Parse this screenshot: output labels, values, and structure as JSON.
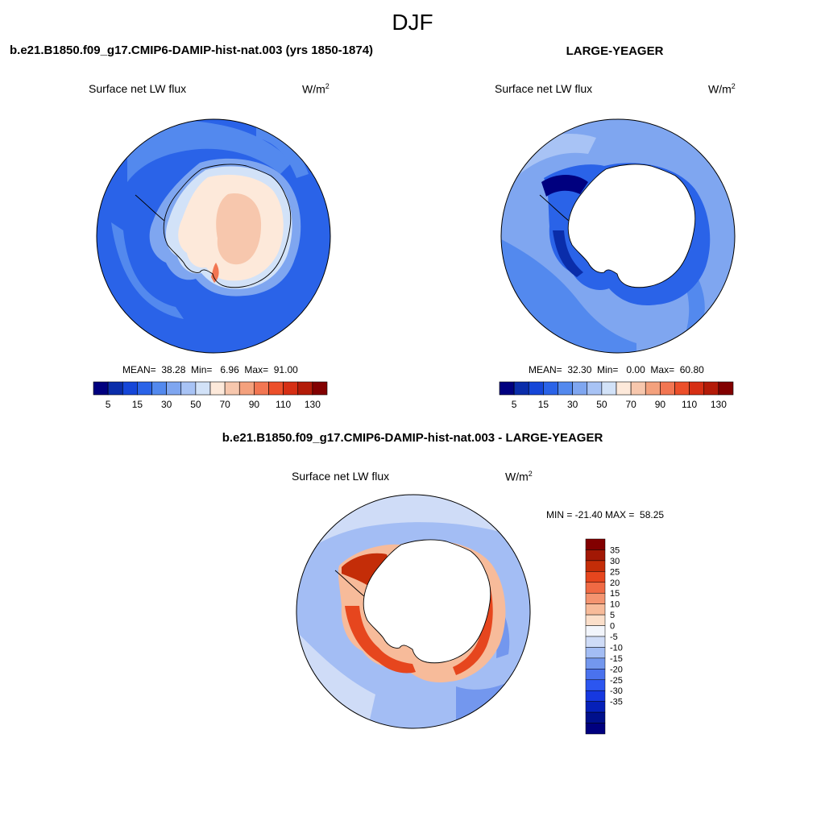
{
  "figure": {
    "season": "DJF",
    "panel1_title": "b.e21.B1850.f09_g17.CMIP6-DAMIP-hist-nat.003 (yrs 1850-1874)",
    "panel2_title": "LARGE-YEAGER",
    "diff_title": "b.e21.B1850.f09_g17.CMIP6-DAMIP-hist-nat.003 - LARGE-YEAGER"
  },
  "panels": [
    {
      "variable": "Surface net LW flux",
      "units_base": "W/m",
      "units_exp": "2",
      "stats": "MEAN=  38.28  Min=   6.96  Max=  91.00"
    },
    {
      "variable": "Surface net LW flux",
      "units_base": "W/m",
      "units_exp": "2",
      "stats": "MEAN=  32.30  Min=   0.00  Max=  60.80"
    },
    {
      "variable": "Surface net LW flux",
      "units_base": "W/m",
      "units_exp": "2",
      "stats": "MIN = -21.40 MAX =  58.25"
    }
  ],
  "colors": {
    "absolute_palette": [
      "#00007f",
      "#0a2daa",
      "#1546d8",
      "#2a63e8",
      "#5389ee",
      "#7fa6f0",
      "#a8c3f5",
      "#d2e2f8",
      "#fde9da",
      "#f7c7ad",
      "#f4a17d",
      "#f27652",
      "#ec4f2a",
      "#d62f14",
      "#b31b08",
      "#820000"
    ],
    "diff_palette": [
      "#00007f",
      "#00108c",
      "#0520b8",
      "#1638e0",
      "#2c56f0",
      "#4a72ee",
      "#7397ee",
      "#a3bdf4",
      "#cfdcf7",
      "#f2f5fb",
      "#fbdfca",
      "#f7bb9a",
      "#f49470",
      "#f06a44",
      "#e6461e",
      "#c42d08",
      "#a21805",
      "#820000"
    ],
    "land": "#ffffff",
    "coast": "#000000"
  },
  "chart_data": [
    {
      "type": "heatmap",
      "projection": "south-polar-stereographic",
      "title": "b.e21.B1850.f09_g17.CMIP6-DAMIP-hist-nat.003 (yrs 1850-1874)",
      "variable": "Surface net LW flux",
      "units": "W/m2",
      "mean": 38.28,
      "min": 6.96,
      "max": 91.0,
      "colorbar_levels": [
        5,
        10,
        15,
        20,
        30,
        40,
        50,
        60,
        70,
        80,
        90,
        100,
        110,
        120,
        130
      ],
      "colorbar_tick_labels": [
        "5",
        "15",
        "30",
        "50",
        "70",
        "90",
        "110",
        "130"
      ],
      "ocean_typical": 20,
      "antarctic_interior_typical": 70
    },
    {
      "type": "heatmap",
      "projection": "south-polar-stereographic",
      "title": "LARGE-YEAGER",
      "variable": "Surface net LW flux",
      "units": "W/m2",
      "mean": 32.3,
      "min": 0.0,
      "max": 60.8,
      "colorbar_levels": [
        5,
        10,
        15,
        20,
        30,
        40,
        50,
        60,
        70,
        80,
        90,
        100,
        110,
        120,
        130
      ],
      "colorbar_tick_labels": [
        "5",
        "15",
        "30",
        "50",
        "70",
        "90",
        "110",
        "130"
      ],
      "ocean_typical": 30,
      "land_masked": true
    },
    {
      "type": "heatmap",
      "projection": "south-polar-stereographic",
      "title": "b.e21.B1850.f09_g17.CMIP6-DAMIP-hist-nat.003 - LARGE-YEAGER",
      "variable": "Surface net LW flux",
      "units": "W/m2",
      "min": -21.4,
      "max": 58.25,
      "colorbar_levels": [
        -35,
        -30,
        -25,
        -20,
        -15,
        -10,
        -5,
        0,
        5,
        10,
        15,
        20,
        25,
        30,
        35
      ],
      "colorbar_tick_labels": [
        "35",
        "30",
        "25",
        "20",
        "15",
        "10",
        "5",
        "0",
        "-5",
        "-10",
        "-15",
        "-20",
        "-25",
        "-30",
        "-35"
      ],
      "ocean_typical": -8,
      "coastal_ring_typical": 30,
      "land_masked": true
    }
  ]
}
